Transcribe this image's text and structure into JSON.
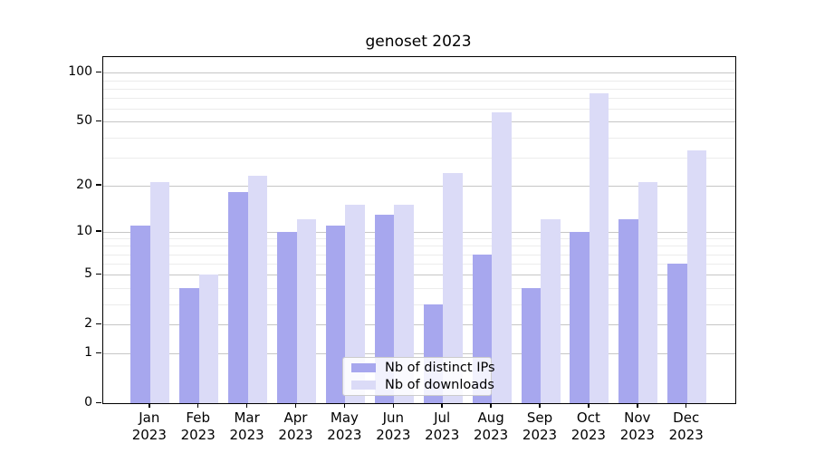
{
  "chart_data": {
    "type": "bar",
    "title": "genoset 2023",
    "year_label": "2023",
    "categories": [
      "Jan",
      "Feb",
      "Mar",
      "Apr",
      "May",
      "Jun",
      "Jul",
      "Aug",
      "Sep",
      "Oct",
      "Nov",
      "Dec"
    ],
    "series": [
      {
        "name": "Nb of distinct IPs",
        "color": "#a7a7ee",
        "values": [
          11,
          4,
          18,
          10,
          11,
          13,
          3,
          7,
          4,
          10,
          12,
          6
        ]
      },
      {
        "name": "Nb of downloads",
        "color": "#dbdbf7",
        "values": [
          21,
          5,
          23,
          12,
          15,
          15,
          24,
          57,
          12,
          75,
          21,
          33
        ]
      }
    ],
    "xlabel": "",
    "ylabel": "",
    "yscale": "log1p",
    "ylim": [
      0,
      125
    ],
    "y_major_ticks": [
      0,
      1,
      2,
      5,
      10,
      20,
      50,
      100
    ],
    "y_minor_ticks": [
      3,
      4,
      6,
      7,
      8,
      9,
      30,
      40,
      60,
      70,
      80,
      90
    ],
    "grid": "horizontal",
    "legend_position": "lower-center-inside"
  },
  "colors": {
    "grid_major": "#c6c6c6",
    "grid_minor": "#ececec",
    "axis": "#000000",
    "background": "#ffffff",
    "text": "#000000",
    "legend_border": "#cccccc"
  }
}
